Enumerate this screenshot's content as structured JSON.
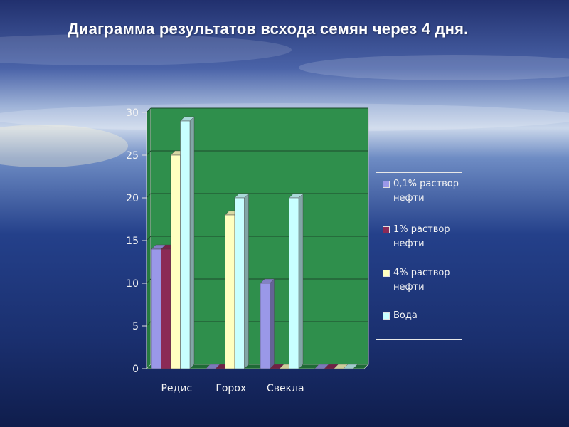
{
  "slide": {
    "title": "Диаграмма результатов всхода семян через 4 дня."
  },
  "colors": {
    "plot_area": "#2f8f4c",
    "gridline": "#1d4a2b",
    "axis": "#e0e0e0",
    "text": "#f4f4f4"
  },
  "chart_data": {
    "type": "bar",
    "title": "",
    "xlabel": "",
    "ylabel": "",
    "ylim": [
      0,
      30
    ],
    "yticks": [
      "0",
      "5",
      "10",
      "15",
      "20",
      "25",
      "30"
    ],
    "categories": [
      "Редис",
      "Горох",
      "Свекла",
      ""
    ],
    "series": [
      {
        "name": "0,1% раствор нефти",
        "color": "#9a98e8",
        "values": [
          14,
          0,
          10,
          0
        ]
      },
      {
        "name": "1% раствор нефти",
        "color": "#8b2a56",
        "values": [
          14,
          0,
          0,
          0
        ]
      },
      {
        "name": "4% раствор нефти",
        "color": "#ffffc0",
        "values": [
          25,
          18,
          0,
          0
        ]
      },
      {
        "name": "Вода",
        "color": "#c8ffff",
        "values": [
          29,
          20,
          20,
          0
        ]
      }
    ],
    "grid": true,
    "legend_position": "right",
    "style": "3d-column"
  }
}
